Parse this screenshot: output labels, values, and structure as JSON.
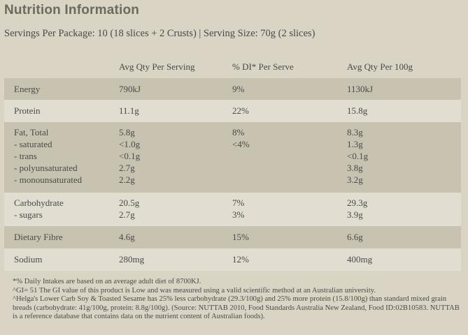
{
  "title": "Nutrition Information",
  "servings": "Servings Per Package: 10 (18 slices + 2 Crusts) | Serving Size: 70g (2 slices)",
  "headers": {
    "serving": "Avg Qty Per Serving",
    "di": "% DI* Per Serve",
    "per100": "Avg Qty Per 100g"
  },
  "rows": [
    {
      "nutrient": [
        "Energy"
      ],
      "serving": [
        "790kJ"
      ],
      "di": [
        "9%"
      ],
      "per100": [
        "1130kJ"
      ]
    },
    {
      "nutrient": [
        "Protein"
      ],
      "serving": [
        "11.1g"
      ],
      "di": [
        "22%"
      ],
      "per100": [
        "15.8g"
      ]
    },
    {
      "nutrient": [
        "Fat, Total",
        "- saturated",
        "- trans",
        "- polyunsaturated",
        "- monounsaturated"
      ],
      "serving": [
        "5.8g",
        "<1.0g",
        "<0.1g",
        "2.7g",
        "2.2g"
      ],
      "di": [
        "8%",
        "<4%",
        "",
        "",
        ""
      ],
      "per100": [
        "8.3g",
        "1.3g",
        "<0.1g",
        "3.8g",
        "3.2g"
      ]
    },
    {
      "nutrient": [
        "Carbohydrate",
        "- sugars"
      ],
      "serving": [
        "20.5g",
        "2.7g"
      ],
      "di": [
        "7%",
        "3%"
      ],
      "per100": [
        "29.3g",
        "3.9g"
      ]
    },
    {
      "nutrient": [
        "Dietary Fibre"
      ],
      "serving": [
        "4.6g"
      ],
      "di": [
        "15%"
      ],
      "per100": [
        "6.6g"
      ]
    },
    {
      "nutrient": [
        "Sodium"
      ],
      "serving": [
        "280mg"
      ],
      "di": [
        "12%"
      ],
      "per100": [
        "400mg"
      ]
    }
  ],
  "footnotes": [
    "*% Daily Intakes are based on an average adult diet of 8700KJ.",
    "^GI= 51 The GI value of this product is Low and was measured using a valid scientific method at an Australian university.",
    "^Helga's Lower Carb Soy & Toasted Sesame has 25% less carbohydrate (29.3/100g) and 25% more protein (15.8/100g) than standard mixed grain breads (carbohydrate: 41g/100g, protein: 8.8g/100g). (Source: NUTTAB 2010, Food Standards Australia New Zealand, Food ID:02B10583. NUTTAB is a reference database that contains data on the nutrient content of Australian foods)."
  ]
}
